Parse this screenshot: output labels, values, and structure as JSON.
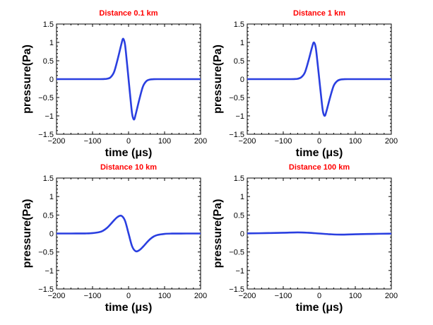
{
  "figure": {
    "background": "#ffffff",
    "line_color": "#2a3fe0",
    "title_color": "#ff0000"
  },
  "chart_data": [
    {
      "type": "line",
      "title": "Distance 0.1 km",
      "xlabel": "time (μs)",
      "ylabel": "pressure(Pa)",
      "xlim": [
        -200,
        200
      ],
      "ylim": [
        -1.5,
        1.5
      ],
      "xticks": [
        -200,
        -100,
        0,
        100,
        200
      ],
      "xtick_labels": [
        "−200",
        "−100",
        "0",
        "100",
        "200"
      ],
      "yticks": [
        -1.5,
        -1,
        -0.5,
        0,
        0.5,
        1,
        1.5
      ],
      "ytick_labels": [
        "−1.5",
        "−1",
        "−0.5",
        "0",
        "0.5",
        "1",
        "1.5"
      ],
      "x": [
        -200,
        -160,
        -120,
        -100,
        -80,
        -70,
        -60,
        -50,
        -40,
        -30,
        -20,
        -15,
        -10,
        -5,
        0,
        5,
        10,
        15,
        20,
        30,
        40,
        50,
        60,
        70,
        80,
        100,
        120,
        160,
        200
      ],
      "series": [
        {
          "name": "pressure",
          "values": [
            0,
            0,
            0,
            0,
            0,
            0.002,
            0.01,
            0.05,
            0.2,
            0.55,
            0.95,
            1.1,
            0.95,
            0.5,
            0,
            -0.5,
            -0.95,
            -1.1,
            -0.95,
            -0.55,
            -0.2,
            -0.05,
            -0.01,
            -0.002,
            0,
            0,
            0,
            0,
            0
          ]
        }
      ]
    },
    {
      "type": "line",
      "title": "Distance 1 km",
      "xlabel": "time (μs)",
      "ylabel": "pressure(Pa)",
      "xlim": [
        -200,
        200
      ],
      "ylim": [
        -1.5,
        1.5
      ],
      "xticks": [
        -200,
        -100,
        0,
        100,
        200
      ],
      "xtick_labels": [
        "−200",
        "−100",
        "0",
        "100",
        "200"
      ],
      "yticks": [
        -1.5,
        -1,
        -0.5,
        0,
        0.5,
        1,
        1.5
      ],
      "ytick_labels": [
        "−1.5",
        "−1",
        "−0.5",
        "0",
        "0.5",
        "1",
        "1.5"
      ],
      "x": [
        -200,
        -160,
        -120,
        -100,
        -80,
        -70,
        -60,
        -50,
        -40,
        -30,
        -20,
        -15,
        -10,
        -5,
        0,
        5,
        10,
        15,
        20,
        30,
        40,
        50,
        60,
        70,
        80,
        100,
        120,
        160,
        200
      ],
      "series": [
        {
          "name": "pressure",
          "values": [
            0,
            0,
            0,
            0,
            0,
            0.002,
            0.01,
            0.05,
            0.18,
            0.5,
            0.87,
            1.0,
            0.87,
            0.46,
            0,
            -0.46,
            -0.87,
            -1.0,
            -0.87,
            -0.5,
            -0.18,
            -0.05,
            -0.01,
            -0.002,
            0,
            0,
            0,
            0,
            0
          ]
        }
      ]
    },
    {
      "type": "line",
      "title": "Distance 10 km",
      "xlabel": "time (μs)",
      "ylabel": "pressure(Pa)",
      "xlim": [
        -200,
        200
      ],
      "ylim": [
        -1.5,
        1.5
      ],
      "xticks": [
        -200,
        -100,
        0,
        100,
        200
      ],
      "xtick_labels": [
        "−200",
        "−100",
        "0",
        "100",
        "200"
      ],
      "yticks": [
        -1.5,
        -1,
        -0.5,
        0,
        0.5,
        1,
        1.5
      ],
      "ytick_labels": [
        "−1.5",
        "−1",
        "−0.5",
        "0",
        "0.5",
        "1",
        "1.5"
      ],
      "x": [
        -200,
        -160,
        -120,
        -100,
        -80,
        -70,
        -60,
        -50,
        -40,
        -30,
        -20,
        -10,
        0,
        10,
        20,
        30,
        40,
        50,
        60,
        70,
        80,
        100,
        120,
        160,
        200
      ],
      "series": [
        {
          "name": "pressure",
          "values": [
            0,
            0,
            0.002,
            0.01,
            0.04,
            0.08,
            0.15,
            0.25,
            0.36,
            0.45,
            0.48,
            0.35,
            0,
            -0.35,
            -0.48,
            -0.45,
            -0.36,
            -0.25,
            -0.15,
            -0.08,
            -0.04,
            -0.01,
            -0.002,
            0,
            0
          ]
        }
      ]
    },
    {
      "type": "line",
      "title": "Distance 100 km",
      "xlabel": "time (μs)",
      "ylabel": "pressure(Pa)",
      "xlim": [
        -200,
        200
      ],
      "ylim": [
        -1.5,
        1.5
      ],
      "xticks": [
        -200,
        -100,
        0,
        100,
        200
      ],
      "xtick_labels": [
        "−200",
        "−100",
        "0",
        "100",
        "200"
      ],
      "yticks": [
        -1.5,
        -1,
        -0.5,
        0,
        0.5,
        1,
        1.5
      ],
      "ytick_labels": [
        "−1.5",
        "−1",
        "−0.5",
        "0",
        "0.5",
        "1",
        "1.5"
      ],
      "x": [
        -200,
        -150,
        -100,
        -60,
        -30,
        0,
        30,
        60,
        100,
        150,
        200
      ],
      "series": [
        {
          "name": "pressure",
          "values": [
            0.003,
            0.01,
            0.02,
            0.03,
            0.02,
            0,
            -0.02,
            -0.03,
            -0.02,
            -0.01,
            -0.003
          ]
        }
      ]
    }
  ]
}
